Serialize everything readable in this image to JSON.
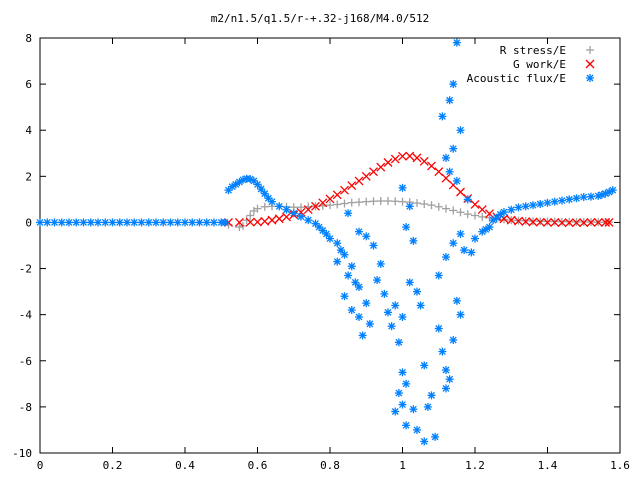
{
  "chart_data": {
    "type": "scatter",
    "title": "m2/n1.5/q1.5/r-+.32-j168/M4.0/512",
    "xlabel": "",
    "ylabel": "",
    "xlim": [
      0,
      1.6
    ],
    "ylim": [
      -10,
      8
    ],
    "xticks": [
      "0",
      "0.2",
      "0.4",
      "0.6",
      "0.8",
      "1",
      "1.2",
      "1.4",
      "1.6"
    ],
    "yticks": [
      "8",
      "6",
      "4",
      "2",
      "0",
      "-2",
      "-4",
      "-6",
      "-8",
      "-10"
    ],
    "grid": false,
    "legend_position": "top-right",
    "series": [
      {
        "name": "R stress/E",
        "marker": "plus",
        "color": "#a0a0a0",
        "points": [
          [
            0.52,
            -0.1
          ],
          [
            0.55,
            -0.2
          ],
          [
            0.56,
            -0.15
          ],
          [
            0.57,
            0.1
          ],
          [
            0.58,
            0.3
          ],
          [
            0.59,
            0.5
          ],
          [
            0.6,
            0.6
          ],
          [
            0.62,
            0.68
          ],
          [
            0.64,
            0.7
          ],
          [
            0.66,
            0.7
          ],
          [
            0.68,
            0.68
          ],
          [
            0.7,
            0.66
          ],
          [
            0.72,
            0.66
          ],
          [
            0.74,
            0.68
          ],
          [
            0.76,
            0.7
          ],
          [
            0.78,
            0.72
          ],
          [
            0.8,
            0.75
          ],
          [
            0.82,
            0.78
          ],
          [
            0.84,
            0.82
          ],
          [
            0.86,
            0.86
          ],
          [
            0.88,
            0.88
          ],
          [
            0.9,
            0.9
          ],
          [
            0.92,
            0.92
          ],
          [
            0.94,
            0.93
          ],
          [
            0.96,
            0.93
          ],
          [
            0.98,
            0.92
          ],
          [
            1.0,
            0.9
          ],
          [
            1.02,
            0.88
          ],
          [
            1.04,
            0.84
          ],
          [
            1.06,
            0.8
          ],
          [
            1.08,
            0.75
          ],
          [
            1.1,
            0.68
          ],
          [
            1.12,
            0.6
          ],
          [
            1.14,
            0.52
          ],
          [
            1.16,
            0.44
          ],
          [
            1.18,
            0.36
          ],
          [
            1.2,
            0.3
          ],
          [
            1.22,
            0.24
          ],
          [
            1.24,
            0.2
          ],
          [
            1.26,
            0.16
          ],
          [
            1.28,
            0.13
          ],
          [
            1.3,
            0.1
          ],
          [
            1.32,
            0.08
          ],
          [
            1.34,
            0.07
          ],
          [
            1.36,
            0.06
          ],
          [
            1.38,
            0.05
          ],
          [
            1.4,
            0.04
          ],
          [
            1.42,
            0.04
          ],
          [
            1.44,
            0.03
          ],
          [
            1.46,
            0.03
          ],
          [
            1.48,
            0.02
          ],
          [
            1.5,
            0.02
          ],
          [
            1.52,
            0.02
          ],
          [
            1.54,
            0.01
          ],
          [
            1.56,
            0.01
          ],
          [
            1.57,
            0.01
          ]
        ]
      },
      {
        "name": "G work/E",
        "marker": "cross",
        "color": "#ff0000",
        "points": [
          [
            0.52,
            0.0
          ],
          [
            0.55,
            0.0
          ],
          [
            0.58,
            0.01
          ],
          [
            0.6,
            0.02
          ],
          [
            0.62,
            0.05
          ],
          [
            0.64,
            0.1
          ],
          [
            0.66,
            0.16
          ],
          [
            0.68,
            0.24
          ],
          [
            0.7,
            0.33
          ],
          [
            0.72,
            0.44
          ],
          [
            0.74,
            0.56
          ],
          [
            0.76,
            0.7
          ],
          [
            0.78,
            0.85
          ],
          [
            0.8,
            1.02
          ],
          [
            0.82,
            1.2
          ],
          [
            0.84,
            1.4
          ],
          [
            0.86,
            1.6
          ],
          [
            0.88,
            1.8
          ],
          [
            0.9,
            2.0
          ],
          [
            0.92,
            2.2
          ],
          [
            0.94,
            2.4
          ],
          [
            0.96,
            2.6
          ],
          [
            0.98,
            2.75
          ],
          [
            1.0,
            2.87
          ],
          [
            1.02,
            2.88
          ],
          [
            1.04,
            2.8
          ],
          [
            1.06,
            2.65
          ],
          [
            1.08,
            2.45
          ],
          [
            1.1,
            2.2
          ],
          [
            1.12,
            1.92
          ],
          [
            1.14,
            1.62
          ],
          [
            1.16,
            1.32
          ],
          [
            1.18,
            1.04
          ],
          [
            1.2,
            0.78
          ],
          [
            1.22,
            0.56
          ],
          [
            1.24,
            0.38
          ],
          [
            1.26,
            0.25
          ],
          [
            1.28,
            0.16
          ],
          [
            1.3,
            0.1
          ],
          [
            1.32,
            0.06
          ],
          [
            1.34,
            0.04
          ],
          [
            1.36,
            0.02
          ],
          [
            1.38,
            0.01
          ],
          [
            1.4,
            0.0
          ],
          [
            1.42,
            0.0
          ],
          [
            1.44,
            -0.01
          ],
          [
            1.46,
            -0.01
          ],
          [
            1.48,
            -0.01
          ],
          [
            1.5,
            -0.01
          ],
          [
            1.52,
            0.0
          ],
          [
            1.54,
            0.0
          ],
          [
            1.56,
            0.0
          ],
          [
            1.57,
            0.0
          ]
        ]
      },
      {
        "name": "Acoustic flux/E",
        "marker": "star",
        "color": "#0080ff",
        "points": [
          [
            0.0,
            0.0
          ],
          [
            0.02,
            0.0
          ],
          [
            0.04,
            0.0
          ],
          [
            0.06,
            0.0
          ],
          [
            0.08,
            0.0
          ],
          [
            0.1,
            0.0
          ],
          [
            0.12,
            0.0
          ],
          [
            0.14,
            0.0
          ],
          [
            0.16,
            0.0
          ],
          [
            0.18,
            0.0
          ],
          [
            0.2,
            0.0
          ],
          [
            0.22,
            0.0
          ],
          [
            0.24,
            0.0
          ],
          [
            0.26,
            0.0
          ],
          [
            0.28,
            0.0
          ],
          [
            0.3,
            0.0
          ],
          [
            0.32,
            0.0
          ],
          [
            0.34,
            0.0
          ],
          [
            0.36,
            0.0
          ],
          [
            0.38,
            0.0
          ],
          [
            0.4,
            0.0
          ],
          [
            0.42,
            0.0
          ],
          [
            0.44,
            0.0
          ],
          [
            0.46,
            0.0
          ],
          [
            0.48,
            0.0
          ],
          [
            0.5,
            0.0
          ],
          [
            0.51,
            0.0
          ],
          [
            0.52,
            1.4
          ],
          [
            0.53,
            1.55
          ],
          [
            0.54,
            1.65
          ],
          [
            0.55,
            1.75
          ],
          [
            0.56,
            1.85
          ],
          [
            0.57,
            1.9
          ],
          [
            0.58,
            1.88
          ],
          [
            0.59,
            1.8
          ],
          [
            0.6,
            1.65
          ],
          [
            0.61,
            1.45
          ],
          [
            0.62,
            1.25
          ],
          [
            0.63,
            1.05
          ],
          [
            0.64,
            0.9
          ],
          [
            0.66,
            0.7
          ],
          [
            0.68,
            0.55
          ],
          [
            0.7,
            0.4
          ],
          [
            0.72,
            0.25
          ],
          [
            0.74,
            0.1
          ],
          [
            0.76,
            -0.05
          ],
          [
            0.77,
            -0.2
          ],
          [
            0.78,
            -0.35
          ],
          [
            0.79,
            -0.5
          ],
          [
            0.8,
            -0.7
          ],
          [
            0.82,
            -0.9
          ],
          [
            0.83,
            -1.2
          ],
          [
            0.84,
            -1.4
          ],
          [
            0.82,
            -1.7
          ],
          [
            0.86,
            -1.9
          ],
          [
            0.85,
            -2.3
          ],
          [
            0.87,
            -2.6
          ],
          [
            0.88,
            -2.8
          ],
          [
            0.84,
            -3.2
          ],
          [
            0.9,
            -3.5
          ],
          [
            0.86,
            -3.8
          ],
          [
            0.88,
            -4.1
          ],
          [
            0.91,
            -4.4
          ],
          [
            0.89,
            -4.9
          ],
          [
            0.85,
            0.4
          ],
          [
            0.88,
            -0.4
          ],
          [
            0.9,
            -0.6
          ],
          [
            0.92,
            -1.0
          ],
          [
            0.94,
            -1.8
          ],
          [
            0.93,
            -2.5
          ],
          [
            0.95,
            -3.1
          ],
          [
            0.96,
            -3.9
          ],
          [
            0.98,
            -3.6
          ],
          [
            1.0,
            -4.1
          ],
          [
            0.97,
            -4.5
          ],
          [
            0.99,
            -5.2
          ],
          [
            1.0,
            1.5
          ],
          [
            1.02,
            0.7
          ],
          [
            1.01,
            -0.2
          ],
          [
            1.03,
            -0.8
          ],
          [
            1.02,
            -2.6
          ],
          [
            1.04,
            -3.0
          ],
          [
            1.05,
            -3.6
          ],
          [
            1.0,
            -6.5
          ],
          [
            1.01,
            -7.0
          ],
          [
            0.99,
            -7.4
          ],
          [
            1.0,
            -7.9
          ],
          [
            0.98,
            -8.2
          ],
          [
            1.01,
            -8.8
          ],
          [
            1.04,
            -9.0
          ],
          [
            1.03,
            -8.1
          ],
          [
            1.06,
            -9.5
          ],
          [
            1.07,
            -8.0
          ],
          [
            1.09,
            -9.3
          ],
          [
            1.08,
            -7.5
          ],
          [
            1.06,
            -6.2
          ],
          [
            1.1,
            -4.6
          ],
          [
            1.11,
            -5.6
          ],
          [
            1.12,
            -6.4
          ],
          [
            1.13,
            -6.8
          ],
          [
            1.12,
            -7.2
          ],
          [
            1.14,
            -5.1
          ],
          [
            1.15,
            -3.4
          ],
          [
            1.16,
            -4.0
          ],
          [
            1.1,
            -2.3
          ],
          [
            1.12,
            -1.5
          ],
          [
            1.14,
            -0.9
          ],
          [
            1.16,
            -0.5
          ],
          [
            1.13,
            2.2
          ],
          [
            1.12,
            2.8
          ],
          [
            1.14,
            3.2
          ],
          [
            1.11,
            4.6
          ],
          [
            1.13,
            5.3
          ],
          [
            1.14,
            6.0
          ],
          [
            1.15,
            7.8
          ],
          [
            1.16,
            4.0
          ],
          [
            1.15,
            1.8
          ],
          [
            1.18,
            1.0
          ],
          [
            1.17,
            -1.2
          ],
          [
            1.19,
            -1.3
          ],
          [
            1.2,
            -0.7
          ],
          [
            1.22,
            -0.4
          ],
          [
            1.23,
            -0.3
          ],
          [
            1.24,
            -0.2
          ],
          [
            1.25,
            0.1
          ],
          [
            1.26,
            0.2
          ],
          [
            1.27,
            0.35
          ],
          [
            1.28,
            0.45
          ],
          [
            1.3,
            0.55
          ],
          [
            1.32,
            0.65
          ],
          [
            1.34,
            0.7
          ],
          [
            1.36,
            0.75
          ],
          [
            1.38,
            0.8
          ],
          [
            1.4,
            0.85
          ],
          [
            1.42,
            0.9
          ],
          [
            1.44,
            0.95
          ],
          [
            1.46,
            1.0
          ],
          [
            1.48,
            1.05
          ],
          [
            1.5,
            1.1
          ],
          [
            1.52,
            1.12
          ],
          [
            1.54,
            1.15
          ],
          [
            1.55,
            1.2
          ],
          [
            1.56,
            1.25
          ],
          [
            1.57,
            1.32
          ],
          [
            1.58,
            1.4
          ]
        ]
      }
    ]
  }
}
